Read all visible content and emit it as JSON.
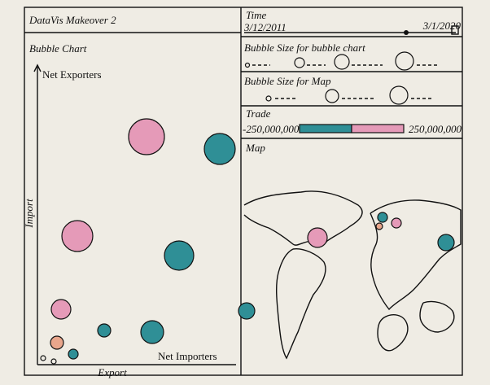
{
  "header": {
    "title": "DataVis Makeover 2"
  },
  "bubble_chart": {
    "title": "Bubble Chart",
    "top_label": "Net Exporters",
    "y_label": "Import",
    "x_label": "Export",
    "bottom_label": "Net Importers"
  },
  "time_panel": {
    "title": "Time",
    "start": "3/12/2011",
    "end": "3/1/2020"
  },
  "bubble_size_chart": {
    "title": "Bubble Size for bubble chart"
  },
  "bubble_size_map": {
    "title": "Bubble Size for Map"
  },
  "trade_panel": {
    "title": "Trade",
    "min": "-250,000,000",
    "max": "250,000,000"
  },
  "map_panel": {
    "title": "Map"
  }
}
